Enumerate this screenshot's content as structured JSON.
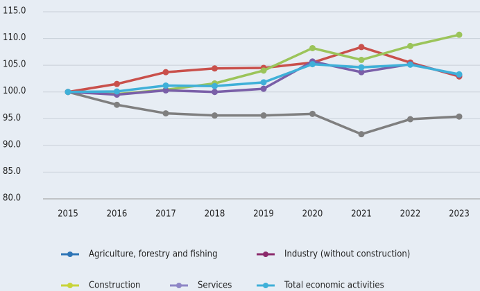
{
  "chart_data": {
    "type": "line",
    "categories": [
      "2015",
      "2016",
      "2017",
      "2018",
      "2019",
      "2020",
      "2021",
      "2022",
      "2023"
    ],
    "ylim": [
      80,
      115
    ],
    "yticks": [
      {
        "value": 80,
        "label": "80.0"
      },
      {
        "value": 85,
        "label": "85.0"
      },
      {
        "value": 90,
        "label": "90.0"
      },
      {
        "value": 95,
        "label": "95.0"
      },
      {
        "value": 100,
        "label": "100.0"
      },
      {
        "value": 105,
        "label": "105.0"
      },
      {
        "value": 110,
        "label": "110.0"
      },
      {
        "value": 115,
        "label": "115.0"
      }
    ],
    "grid": true,
    "series": [
      {
        "name": "Agriculture, forestry and fishing",
        "color": "#7f7f7f",
        "legend_color": "#2e75b6",
        "values": [
          100,
          97.6,
          96.0,
          95.6,
          95.6,
          95.9,
          92.1,
          94.9,
          95.4
        ]
      },
      {
        "name": "Industry (without construction)",
        "color": "#c9504b",
        "legend_color": "#8b2a6b",
        "values": [
          100,
          101.5,
          103.7,
          104.4,
          104.5,
          105.5,
          108.4,
          105.5,
          102.9
        ]
      },
      {
        "name": "Construction",
        "color": "#9bc45a",
        "legend_color": "#c8d43a",
        "values": [
          100,
          99.6,
          100.4,
          101.6,
          104.0,
          108.2,
          106.0,
          108.6,
          110.7
        ]
      },
      {
        "name": "Services",
        "color": "#7a5fa8",
        "legend_color": "#8e86c6",
        "values": [
          100,
          99.5,
          100.3,
          100.0,
          100.6,
          105.7,
          103.7,
          105.2,
          103.2
        ]
      },
      {
        "name": "Total economic activities",
        "color": "#3fb0d8",
        "legend_color": "#3fb0d8",
        "values": [
          100,
          100.1,
          101.2,
          101.1,
          101.8,
          105.2,
          104.6,
          105.1,
          103.3
        ]
      }
    ]
  }
}
